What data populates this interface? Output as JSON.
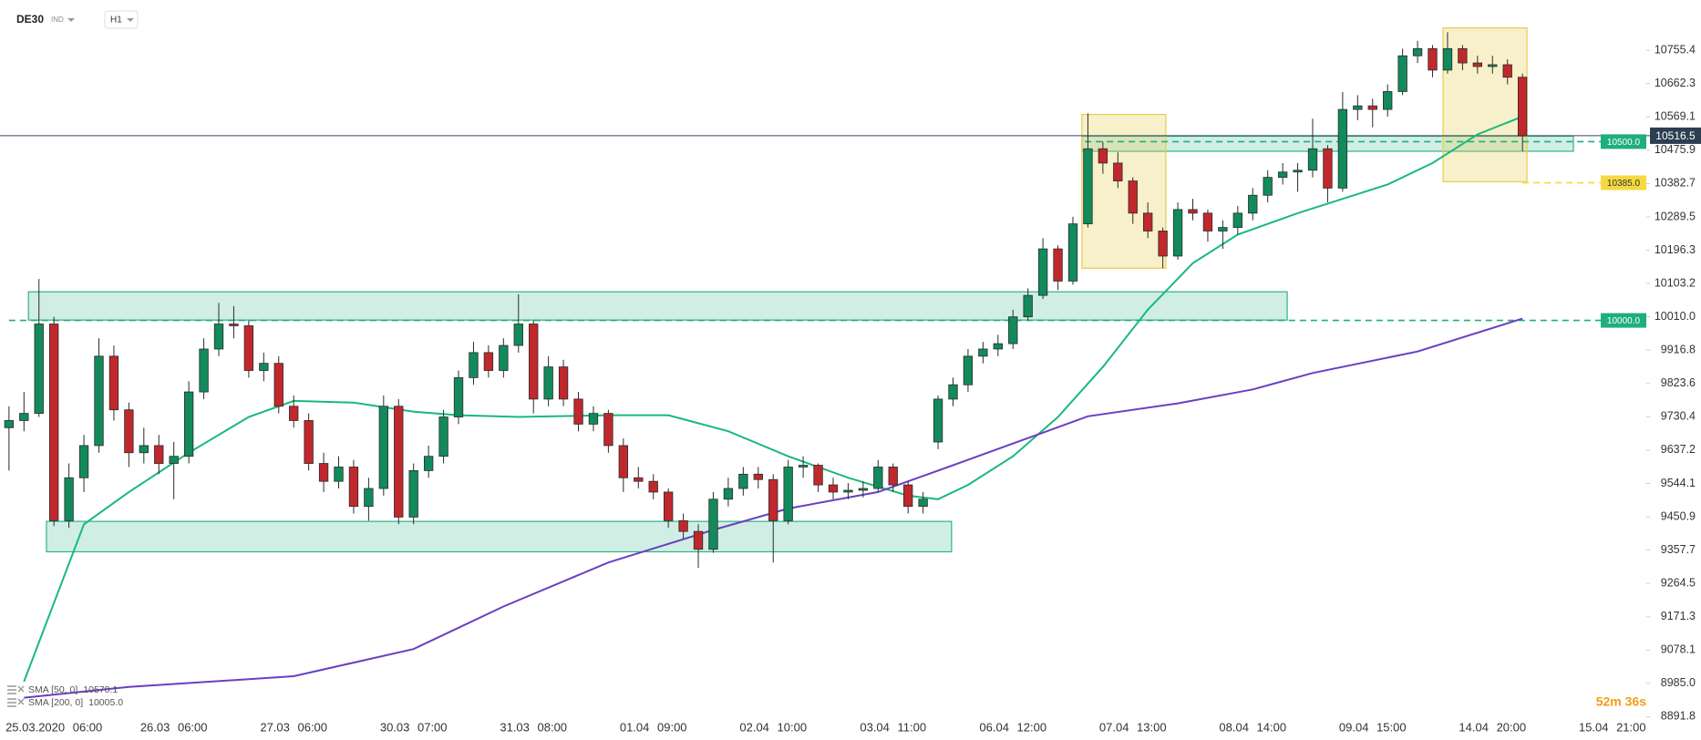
{
  "chart_data": {
    "type": "candlestick",
    "title": "DE30",
    "subtitle": "IND",
    "timeframe": "H1",
    "countdown": "52m 36s",
    "up_color": "#128a5c",
    "down_color": "#c0282d",
    "open": [
      9700,
      9720,
      9740,
      9990,
      9440,
      9560,
      9650,
      9900,
      9750,
      9630,
      9650,
      9600,
      9620,
      9800,
      9920,
      9990,
      9985,
      9860,
      9880,
      9760,
      9720,
      9600,
      9550,
      9590,
      9480,
      9530,
      9760,
      9450,
      9580,
      9620,
      9730,
      9840,
      9910,
      9860,
      9930,
      9990,
      9780,
      9870,
      9780,
      9710,
      9740,
      9650,
      9560,
      9550,
      9520,
      9440,
      9410,
      9360,
      9500,
      9530,
      9570,
      9555,
      9440,
      9590,
      9595,
      9540,
      9520,
      9525,
      9530,
      9590,
      9540,
      9480,
      9660,
      9780,
      9820,
      9900,
      9920,
      9935,
      10010,
      10070,
      10200,
      10110,
      10270,
      10480,
      10440,
      10390,
      10300,
      10250,
      10180,
      10310,
      10300,
      10250,
      10260,
      10300,
      10350,
      10400,
      10415,
      10420,
      10480,
      10370,
      10590,
      10600,
      10590,
      10640,
      10740,
      10760,
      10700,
      10760,
      10720,
      10710,
      10715,
      10680
    ],
    "high": [
      9760,
      9800,
      10116,
      10010,
      9600,
      9680,
      9950,
      9930,
      9770,
      9700,
      9680,
      9660,
      9830,
      9950,
      10049,
      10040,
      10000,
      9910,
      9900,
      9790,
      9740,
      9630,
      9620,
      9610,
      9560,
      9790,
      9780,
      9600,
      9650,
      9750,
      9860,
      9940,
      9930,
      9950,
      10073,
      10000,
      9900,
      9890,
      9800,
      9760,
      9750,
      9670,
      9590,
      9570,
      9530,
      9460,
      9430,
      9520,
      9560,
      9590,
      9590,
      9570,
      9610,
      9620,
      9600,
      9560,
      9545,
      9550,
      9610,
      9600,
      9550,
      9520,
      9790,
      9840,
      9920,
      9940,
      9960,
      10030,
      10090,
      10230,
      10210,
      10290,
      10579,
      10500,
      10470,
      10400,
      10330,
      10260,
      10330,
      10340,
      10310,
      10280,
      10320,
      10370,
      10420,
      10440,
      10440,
      10564,
      10490,
      10639,
      10630,
      10620,
      10660,
      10760,
      10782,
      10770,
      10806,
      10770,
      10740,
      10740,
      10730,
      10690
    ],
    "low": [
      9580,
      9690,
      9730,
      9425,
      9420,
      9520,
      9630,
      9720,
      9590,
      9600,
      9570,
      9500,
      9600,
      9780,
      9900,
      9950,
      9840,
      9830,
      9740,
      9700,
      9580,
      9520,
      9530,
      9460,
      9440,
      9510,
      9430,
      9430,
      9560,
      9600,
      9710,
      9820,
      9840,
      9840,
      9910,
      9740,
      9760,
      9760,
      9690,
      9690,
      9630,
      9520,
      9530,
      9500,
      9420,
      9390,
      9308,
      9350,
      9480,
      9510,
      9530,
      9323,
      9430,
      9560,
      9520,
      9500,
      9500,
      9505,
      9520,
      9520,
      9460,
      9460,
      9640,
      9760,
      9800,
      9880,
      9900,
      9920,
      10000,
      10060,
      10085,
      10100,
      10260,
      10410,
      10370,
      10270,
      10230,
      10146,
      10170,
      10280,
      10220,
      10200,
      10240,
      10280,
      10330,
      10380,
      10360,
      10400,
      10330,
      10360,
      10560,
      10540,
      10570,
      10630,
      10720,
      10680,
      10690,
      10700,
      10690,
      10690,
      10660,
      10473
    ],
    "close": [
      9720,
      9740,
      9990,
      9440,
      9560,
      9650,
      9900,
      9750,
      9630,
      9650,
      9600,
      9620,
      9800,
      9920,
      9990,
      9985,
      9860,
      9880,
      9760,
      9720,
      9600,
      9550,
      9590,
      9480,
      9530,
      9760,
      9450,
      9580,
      9620,
      9730,
      9840,
      9910,
      9860,
      9930,
      9990,
      9780,
      9870,
      9780,
      9710,
      9740,
      9650,
      9560,
      9550,
      9520,
      9440,
      9410,
      9360,
      9500,
      9530,
      9570,
      9555,
      9440,
      9590,
      9595,
      9540,
      9520,
      9525,
      9530,
      9590,
      9540,
      9480,
      9500,
      9780,
      9820,
      9900,
      9920,
      9935,
      10010,
      10070,
      10200,
      10110,
      10270,
      10480,
      10440,
      10390,
      10300,
      10250,
      10180,
      10310,
      10300,
      10250,
      10260,
      10300,
      10350,
      10400,
      10415,
      10420,
      10480,
      10370,
      10590,
      10600,
      10590,
      10640,
      10740,
      10760,
      10700,
      10760,
      10720,
      10710,
      10715,
      10680,
      10516.5
    ],
    "series": [
      {
        "name": "SMA [50, 0]",
        "color": "#19b97c",
        "value_label": "10570.1",
        "x": [
          1,
          5,
          8,
          12,
          16,
          19,
          23,
          27,
          30,
          34,
          40,
          44,
          48,
          52,
          56,
          60,
          62,
          64,
          67,
          70,
          73,
          76,
          79,
          82,
          86,
          89,
          92,
          95,
          98,
          101
        ],
        "values": [
          8990,
          9430,
          9520,
          9630,
          9730,
          9775,
          9770,
          9745,
          9735,
          9730,
          9735,
          9735,
          9690,
          9620,
          9560,
          9510,
          9500,
          9540,
          9620,
          9730,
          9870,
          10030,
          10160,
          10240,
          10300,
          10340,
          10380,
          10440,
          10520,
          10570.1
        ]
      },
      {
        "name": "SMA [200, 0]",
        "color": "#6a3fc1",
        "value_label": "10005.0",
        "x": [
          1,
          8,
          19,
          27,
          33,
          40,
          47,
          52,
          58,
          63,
          68,
          72,
          78,
          83,
          87,
          94,
          101
        ],
        "values": [
          8945,
          8975,
          9005,
          9081,
          9200,
          9323,
          9414,
          9474,
          9520,
          9595,
          9671,
          9732,
          9768,
          9807,
          9853,
          9913,
          10005
        ]
      }
    ],
    "zones": [
      {
        "x": [
          2.5,
          62.9
        ],
        "y": [
          9353,
          9438
        ],
        "color": "#2fb387"
      },
      {
        "x": [
          1.3,
          85.3
        ],
        "y": [
          10001,
          10080
        ],
        "color": "#2fb387"
      },
      {
        "x": [
          71.6,
          104.4
        ],
        "y": [
          10473,
          10515
        ],
        "color": "#2fb387"
      },
      {
        "x": [
          71.6,
          77.2
        ],
        "y": [
          10146,
          10576
        ],
        "color": "#e8cc4e"
      },
      {
        "x": [
          95.7,
          101.3
        ],
        "y": [
          10388,
          10818
        ],
        "color": "#e8cc4e"
      }
    ],
    "levels": [
      {
        "value": 10500,
        "label": "10500.0",
        "start": 71.8,
        "color": "#1fae7d",
        "text_color": "#ffffff"
      },
      {
        "value": 10385,
        "label": "10385.0",
        "start": 101,
        "color": "#f5d93f",
        "text_color": "#333333"
      },
      {
        "value": 10000,
        "label": "10000.0",
        "start": 0,
        "color": "#1fae7d",
        "text_color": "#ffffff"
      }
    ],
    "xlim": [
      -0.6,
      107.5
    ],
    "xticks": [
      {
        "value": 3,
        "label": "25.03.2020 06:00"
      },
      {
        "value": 11,
        "label": "26.03 06:00"
      },
      {
        "value": 19,
        "label": "27.03 06:00"
      },
      {
        "value": 27,
        "label": "30.03 07:00"
      },
      {
        "value": 35,
        "label": "31.03 08:00"
      },
      {
        "value": 43,
        "label": "01.04 09:00"
      },
      {
        "value": 51,
        "label": "02.04 10:00"
      },
      {
        "value": 59,
        "label": "03.04 11:00"
      },
      {
        "value": 67,
        "label": "06.04 12:00"
      },
      {
        "value": 75,
        "label": "07.04 13:00"
      },
      {
        "value": 83,
        "label": "08.04 14:00"
      },
      {
        "value": 91,
        "label": "09.04 15:00"
      },
      {
        "value": 99,
        "label": "14.04 20:00"
      },
      {
        "value": 107,
        "label": "15.04 21:00"
      }
    ],
    "ylim": [
      8870,
      10896
    ],
    "yticks": [
      10755.4,
      10662.3,
      10569.1,
      10475.9,
      10382.7,
      10289.5,
      10196.3,
      10103.2,
      {
        "value": 10010,
        "label": "10010.0"
      },
      9916.8,
      9823.6,
      9730.4,
      9637.2,
      9544.1,
      9450.9,
      9357.7,
      9264.5,
      9171.3,
      9078.1,
      {
        "value": 8985,
        "label": "8985.0"
      },
      8891.8
    ]
  }
}
